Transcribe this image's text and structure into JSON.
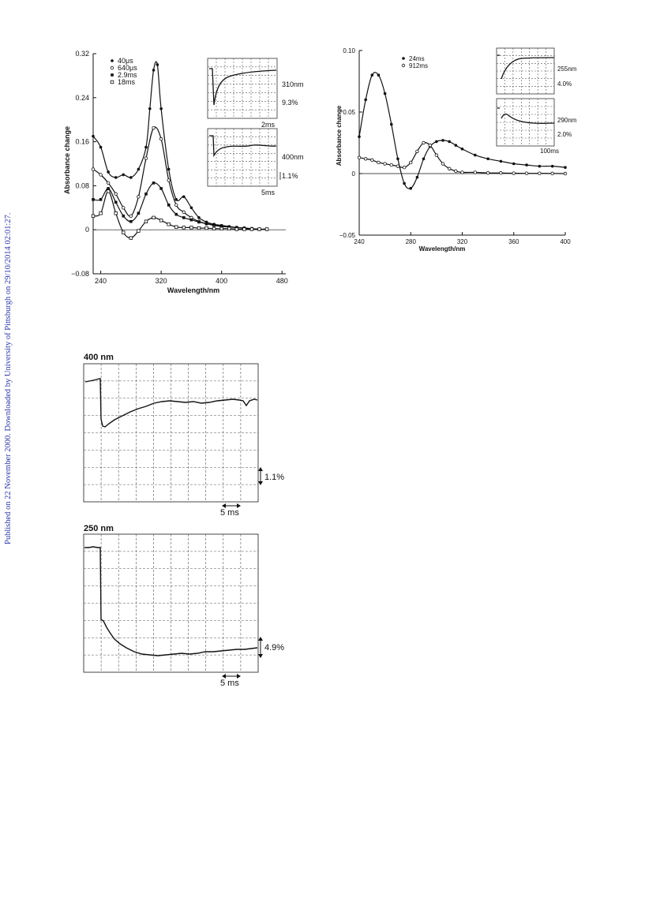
{
  "sidebar_text": "Published on 22 November 2000. Downloaded by University of Pittsburgh on 29/10/2014 02:01:27.",
  "chart_data": [
    {
      "id": "spectrum-left",
      "type": "line",
      "xlabel": "Wavelength/nm",
      "ylabel": "Absorbance change",
      "xlim": [
        230,
        485
      ],
      "ylim": [
        -0.08,
        0.32
      ],
      "xticks": [
        240,
        320,
        400,
        480
      ],
      "yticks": [
        -0.08,
        0,
        0.08,
        0.16,
        0.24,
        0.32
      ],
      "ytick_labels": [
        "−0.08",
        "0",
        "0.08",
        "0.16",
        "0.24",
        "0.32"
      ],
      "zero_line": true,
      "legend_position": "top-left",
      "series": [
        {
          "name": "40μs",
          "marker": "filled-circle",
          "x": [
            230,
            240,
            250,
            260,
            270,
            280,
            290,
            300,
            305,
            310,
            315,
            320,
            330,
            340,
            350,
            360,
            370,
            380,
            390,
            400,
            410,
            420,
            430,
            440,
            450,
            460
          ],
          "y": [
            0.17,
            0.15,
            0.105,
            0.095,
            0.1,
            0.095,
            0.11,
            0.15,
            0.22,
            0.29,
            0.3,
            0.22,
            0.11,
            0.055,
            0.06,
            0.04,
            0.022,
            0.014,
            0.01,
            0.008,
            0.006,
            0.004,
            0.003,
            0.002,
            0.001,
            0.001
          ]
        },
        {
          "name": "640μs",
          "marker": "open-circle",
          "x": [
            230,
            240,
            250,
            260,
            270,
            280,
            290,
            300,
            310,
            320,
            330,
            340,
            350,
            360,
            370,
            380,
            390,
            400,
            410,
            420,
            430,
            440,
            450,
            460
          ],
          "y": [
            0.11,
            0.1,
            0.085,
            0.065,
            0.04,
            0.025,
            0.06,
            0.13,
            0.185,
            0.165,
            0.09,
            0.045,
            0.032,
            0.022,
            0.015,
            0.011,
            0.008,
            0.006,
            0.005,
            0.004,
            0.003,
            0.002,
            0.001,
            0.001
          ]
        },
        {
          "name": "2.9ms",
          "marker": "filled-square",
          "x": [
            230,
            240,
            250,
            260,
            270,
            280,
            290,
            300,
            310,
            320,
            330,
            340,
            350,
            360,
            370,
            380,
            390,
            400,
            410,
            420,
            430,
            440,
            450,
            460
          ],
          "y": [
            0.055,
            0.055,
            0.075,
            0.05,
            0.025,
            0.015,
            0.03,
            0.065,
            0.085,
            0.075,
            0.045,
            0.028,
            0.022,
            0.018,
            0.014,
            0.011,
            0.009,
            0.007,
            0.005,
            0.004,
            0.003,
            0.002,
            0.001,
            0.001
          ]
        },
        {
          "name": "18ms",
          "marker": "open-square",
          "x": [
            230,
            240,
            250,
            260,
            270,
            280,
            290,
            300,
            310,
            320,
            330,
            340,
            350,
            360,
            370,
            380,
            390,
            400,
            410,
            420,
            430,
            440,
            450,
            460
          ],
          "y": [
            0.025,
            0.03,
            0.07,
            0.03,
            -0.005,
            -0.015,
            -0.002,
            0.015,
            0.022,
            0.017,
            0.01,
            0.005,
            0.004,
            0.004,
            0.003,
            0.003,
            0.002,
            0.002,
            0.002,
            0.001,
            0.001,
            0.001,
            0.001,
            0.001
          ]
        }
      ],
      "insets": [
        {
          "id": "inset-310",
          "wavelength": "310nm",
          "scale": "9.3%",
          "time": "2ms"
        },
        {
          "id": "inset-400",
          "wavelength": "400nm",
          "scale": "1.1%",
          "time": "5ms"
        }
      ]
    },
    {
      "id": "spectrum-right",
      "type": "line",
      "xlabel": "Wavelength/nm",
      "ylabel": "Absorbance change",
      "xlim": [
        240,
        400
      ],
      "ylim": [
        -0.05,
        0.1
      ],
      "xticks": [
        240,
        280,
        320,
        360,
        400
      ],
      "yticks": [
        -0.05,
        0,
        0.05,
        0.1
      ],
      "ytick_labels": [
        "−0.05",
        "0",
        "0.05",
        "0.10"
      ],
      "zero_line": true,
      "legend_position": "top-left",
      "series": [
        {
          "name": "24ms",
          "marker": "filled-circle",
          "x": [
            240,
            245,
            250,
            255,
            260,
            265,
            270,
            275,
            280,
            285,
            290,
            295,
            300,
            305,
            310,
            315,
            320,
            330,
            340,
            350,
            360,
            370,
            380,
            390,
            400
          ],
          "y": [
            0.03,
            0.06,
            0.08,
            0.08,
            0.065,
            0.04,
            0.012,
            -0.008,
            -0.012,
            -0.003,
            0.012,
            0.022,
            0.026,
            0.027,
            0.026,
            0.023,
            0.02,
            0.015,
            0.012,
            0.01,
            0.008,
            0.007,
            0.006,
            0.006,
            0.005
          ]
        },
        {
          "name": "912ms",
          "marker": "open-circle",
          "x": [
            240,
            245,
            250,
            255,
            260,
            265,
            270,
            275,
            280,
            285,
            290,
            295,
            300,
            305,
            310,
            315,
            320,
            330,
            340,
            350,
            360,
            370,
            380,
            390,
            400
          ],
          "y": [
            0.013,
            0.012,
            0.011,
            0.009,
            0.008,
            0.007,
            0.006,
            0.005,
            0.009,
            0.018,
            0.025,
            0.023,
            0.015,
            0.008,
            0.004,
            0.002,
            0.001,
            0.001,
            0.0005,
            0.0005,
            0.0003,
            0.0002,
            0.0002,
            0.0001,
            0.0
          ]
        }
      ],
      "insets": [
        {
          "id": "inset-255",
          "wavelength": "255nm",
          "scale": "4.0%"
        },
        {
          "id": "inset-290",
          "wavelength": "290nm",
          "scale": "2.0%",
          "time": "100ms"
        }
      ]
    },
    {
      "id": "trace-400",
      "type": "line",
      "title": "400 nm",
      "scale_label": "1.1%",
      "time_label": "5 ms",
      "grid": true
    },
    {
      "id": "trace-250",
      "type": "line",
      "title": "250 nm",
      "scale_label": "4.9%",
      "time_label": "5 ms",
      "grid": true
    }
  ]
}
